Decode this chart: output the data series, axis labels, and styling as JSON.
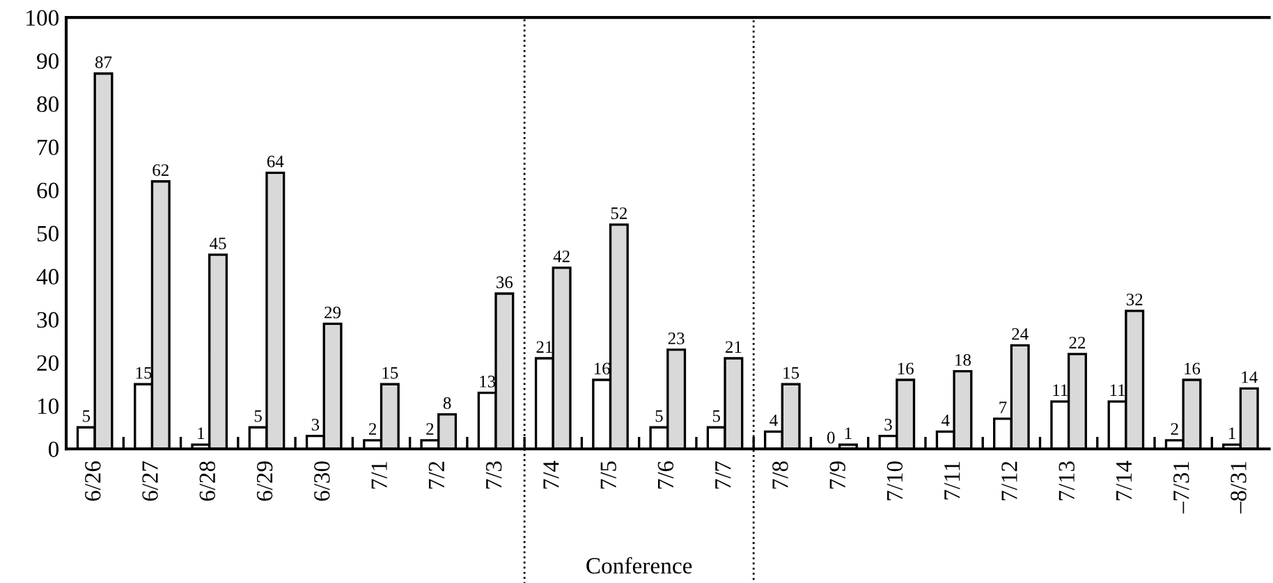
{
  "chart_data": {
    "type": "bar",
    "categories": [
      "6/26",
      "6/27",
      "6/28",
      "6/29",
      "6/30",
      "7/1",
      "7/2",
      "7/3",
      "7/4",
      "7/5",
      "7/6",
      "7/7",
      "7/8",
      "7/9",
      "7/10",
      "7/11",
      "7/12",
      "7/13",
      "7/14",
      "–7/31",
      "–8/31"
    ],
    "series": [
      {
        "color": "#ffffff",
        "values": [
          5,
          15,
          1,
          5,
          3,
          2,
          2,
          13,
          21,
          16,
          5,
          5,
          4,
          0,
          3,
          4,
          7,
          11,
          11,
          2,
          1
        ]
      },
      {
        "color": "#d9d9d9",
        "values": [
          87,
          62,
          45,
          64,
          29,
          15,
          8,
          36,
          42,
          52,
          23,
          21,
          15,
          1,
          16,
          18,
          24,
          22,
          32,
          16,
          14
        ]
      }
    ],
    "ylim": [
      0,
      100
    ],
    "yticks": [
      0,
      10,
      20,
      30,
      40,
      50,
      60,
      70,
      80,
      90,
      100
    ],
    "data_labels": true,
    "grid": false,
    "legend": false,
    "annotations": [
      "Conference"
    ]
  }
}
